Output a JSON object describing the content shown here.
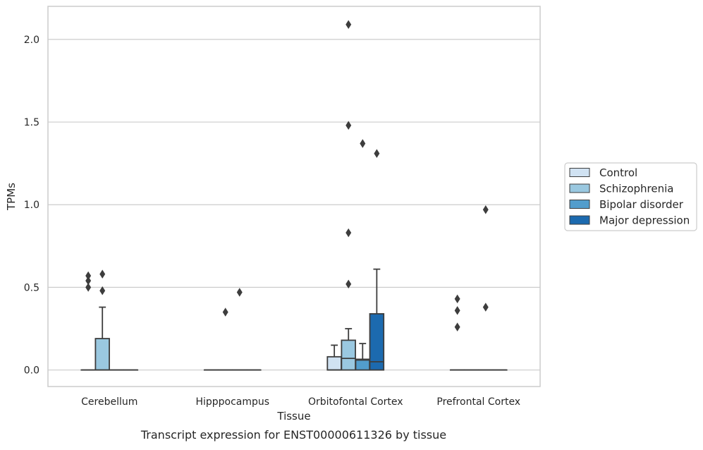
{
  "caption": "Transcript expression for ENST00000611326 by tissue",
  "chart_data": {
    "type": "box",
    "xlabel": "Tissue",
    "ylabel": "TPMs",
    "ylim": [
      -0.1,
      2.2
    ],
    "yticks": [
      "0.0",
      "0.5",
      "1.0",
      "1.5",
      "2.0"
    ],
    "grid": "horizontal",
    "legend_position": "right",
    "categories": [
      "Cerebellum",
      "Hipppocampus",
      "Orbitofontal Cortex",
      "Prefrontal Cortex"
    ],
    "series": [
      {
        "name": "Control",
        "color": "#d0e2f2",
        "boxes": [
          {
            "q1": 0,
            "median": 0,
            "q3": 0,
            "whisker_low": 0,
            "whisker_high": 0,
            "outliers": [
              0.57,
              0.54,
              0.5
            ]
          },
          {
            "q1": 0,
            "median": 0,
            "q3": 0,
            "whisker_low": 0,
            "whisker_high": 0,
            "outliers": []
          },
          {
            "q1": 0,
            "median": 0,
            "q3": 0.08,
            "whisker_low": 0,
            "whisker_high": 0.15,
            "outliers": []
          },
          {
            "q1": 0,
            "median": 0,
            "q3": 0,
            "whisker_low": 0,
            "whisker_high": 0,
            "outliers": [
              0.43,
              0.36,
              0.26
            ]
          }
        ]
      },
      {
        "name": "Schizophrenia",
        "color": "#9ac8e0",
        "boxes": [
          {
            "q1": 0,
            "median": 0,
            "q3": 0.19,
            "whisker_low": 0,
            "whisker_high": 0.38,
            "outliers": [
              0.58,
              0.48
            ]
          },
          {
            "q1": 0,
            "median": 0,
            "q3": 0,
            "whisker_low": 0,
            "whisker_high": 0,
            "outliers": [
              0.35
            ]
          },
          {
            "q1": 0,
            "median": 0.07,
            "q3": 0.18,
            "whisker_low": 0,
            "whisker_high": 0.25,
            "outliers": [
              2.09,
              1.48,
              0.83,
              0.52
            ]
          },
          {
            "q1": 0,
            "median": 0,
            "q3": 0,
            "whisker_low": 0,
            "whisker_high": 0,
            "outliers": []
          }
        ]
      },
      {
        "name": "Bipolar disorder",
        "color": "#529dcc",
        "boxes": [
          {
            "q1": 0,
            "median": 0,
            "q3": 0,
            "whisker_low": 0,
            "whisker_high": 0,
            "outliers": []
          },
          {
            "q1": 0,
            "median": 0,
            "q3": 0,
            "whisker_low": 0,
            "whisker_high": 0,
            "outliers": [
              0.47
            ]
          },
          {
            "q1": 0,
            "median": 0.06,
            "q3": 0.065,
            "whisker_low": 0,
            "whisker_high": 0.16,
            "outliers": [
              1.37
            ]
          },
          {
            "q1": 0,
            "median": 0,
            "q3": 0,
            "whisker_low": 0,
            "whisker_high": 0,
            "outliers": [
              0.38,
              0.97
            ]
          }
        ]
      },
      {
        "name": "Major depression",
        "color": "#1c6aaf",
        "boxes": [
          {
            "q1": 0,
            "median": 0,
            "q3": 0,
            "whisker_low": 0,
            "whisker_high": 0,
            "outliers": []
          },
          {
            "q1": 0,
            "median": 0,
            "q3": 0,
            "whisker_low": 0,
            "whisker_high": 0,
            "outliers": []
          },
          {
            "q1": 0,
            "median": 0.05,
            "q3": 0.34,
            "whisker_low": 0,
            "whisker_high": 0.61,
            "outliers": [
              1.31
            ]
          },
          {
            "q1": 0,
            "median": 0,
            "q3": 0,
            "whisker_low": 0,
            "whisker_high": 0,
            "outliers": []
          }
        ]
      }
    ]
  }
}
